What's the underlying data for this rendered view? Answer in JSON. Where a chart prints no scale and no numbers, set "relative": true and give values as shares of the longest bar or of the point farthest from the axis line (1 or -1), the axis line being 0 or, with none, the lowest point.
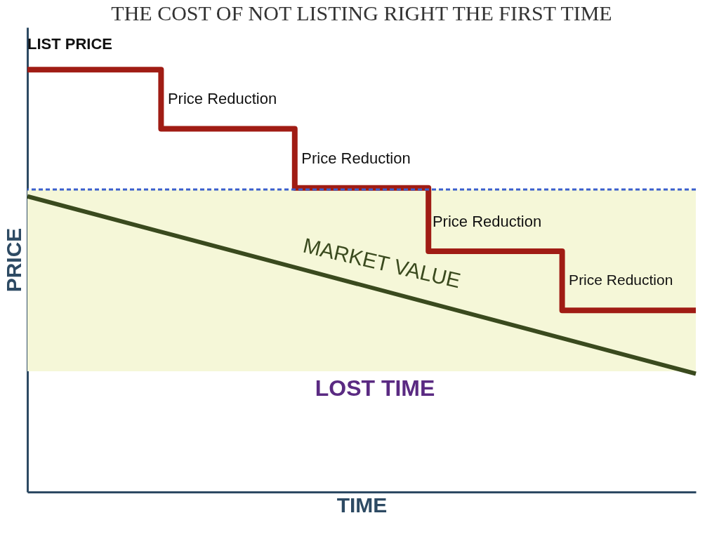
{
  "chart_data": {
    "type": "step",
    "title": "THE COST OF NOT LISTING RIGHT THE FIRST TIME",
    "xlabel": "TIME",
    "ylabel": "PRICE",
    "relative": true,
    "categories": [
      null,
      null,
      null,
      null,
      null,
      null
    ],
    "series": [
      {
        "color": "#a01c14",
        "values": [
          1,
          0.86,
          0.72,
          0.57,
          0.43,
          0.43
        ]
      },
      {
        "type": "line",
        "color": "#3a4a1e",
        "values": [
          0.7,
          0.616,
          0.532,
          0.448,
          0.364,
          0.28
        ]
      }
    ],
    "ref_lines": [
      {
        "axis": "y",
        "value": 0.716,
        "color": "#3a5fcd",
        "line_style": "dashed"
      }
    ],
    "bands": [
      {
        "axis": "y",
        "from": 0.286,
        "to": 0.716,
        "color": "#f5f7d8"
      }
    ],
    "annotations": [
      "LIST PRICE",
      "Price Reduction",
      "Price Reduction",
      "Price Reduction",
      "Price Reduction",
      "MARKET VALUE",
      "LOST TIME"
    ],
    "grid": false
  }
}
